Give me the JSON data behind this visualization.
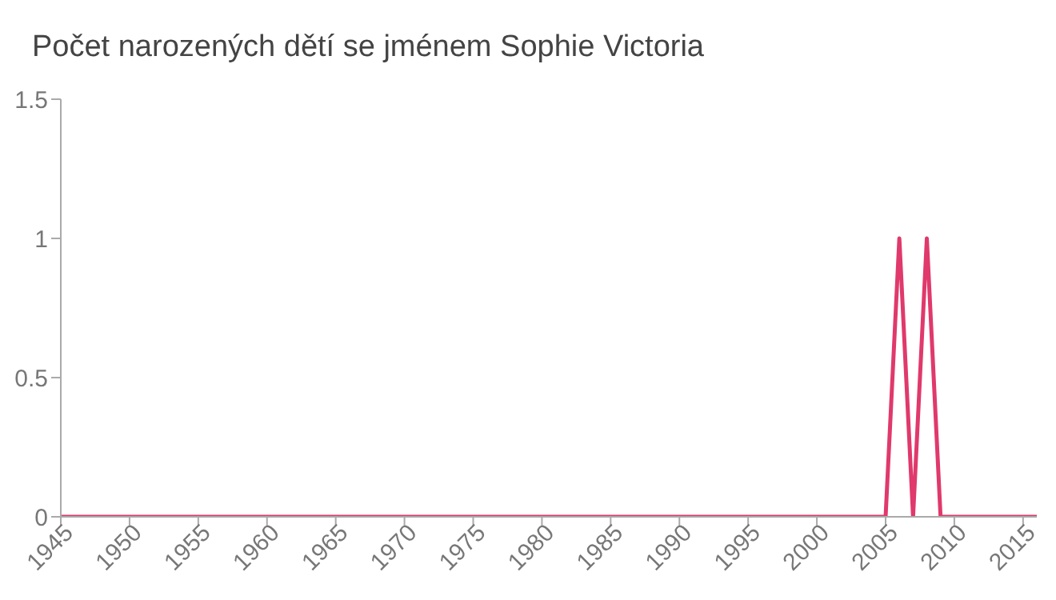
{
  "chart_data": {
    "type": "line",
    "title": "Počet narozených dětí se jménem Sophie Victoria",
    "x": [
      1945,
      1946,
      1947,
      1948,
      1949,
      1950,
      1951,
      1952,
      1953,
      1954,
      1955,
      1956,
      1957,
      1958,
      1959,
      1960,
      1961,
      1962,
      1963,
      1964,
      1965,
      1966,
      1967,
      1968,
      1969,
      1970,
      1971,
      1972,
      1973,
      1974,
      1975,
      1976,
      1977,
      1978,
      1979,
      1980,
      1981,
      1982,
      1983,
      1984,
      1985,
      1986,
      1987,
      1988,
      1989,
      1990,
      1991,
      1992,
      1993,
      1994,
      1995,
      1996,
      1997,
      1998,
      1999,
      2000,
      2001,
      2002,
      2003,
      2004,
      2005,
      2006,
      2007,
      2008,
      2009,
      2010,
      2011,
      2012,
      2013,
      2014,
      2015,
      2016
    ],
    "series": [
      {
        "color": "#e0396b",
        "values": [
          0,
          0,
          0,
          0,
          0,
          0,
          0,
          0,
          0,
          0,
          0,
          0,
          0,
          0,
          0,
          0,
          0,
          0,
          0,
          0,
          0,
          0,
          0,
          0,
          0,
          0,
          0,
          0,
          0,
          0,
          0,
          0,
          0,
          0,
          0,
          0,
          0,
          0,
          0,
          0,
          0,
          0,
          0,
          0,
          0,
          0,
          0,
          0,
          0,
          0,
          0,
          0,
          0,
          0,
          0,
          0,
          0,
          0,
          0,
          0,
          0,
          1,
          0,
          1,
          0,
          0,
          0,
          0,
          0,
          0,
          0,
          0
        ]
      }
    ],
    "xlim": [
      1945,
      2016
    ],
    "xticks": [
      1945,
      1950,
      1955,
      1960,
      1965,
      1970,
      1975,
      1980,
      1985,
      1990,
      1995,
      2000,
      2005,
      2010,
      2015
    ],
    "ylim": [
      0,
      1.5
    ],
    "yticks": [
      0,
      0.5,
      1,
      1.5
    ],
    "grid": false,
    "legend": false,
    "marker": "none",
    "line_style": "solid"
  }
}
